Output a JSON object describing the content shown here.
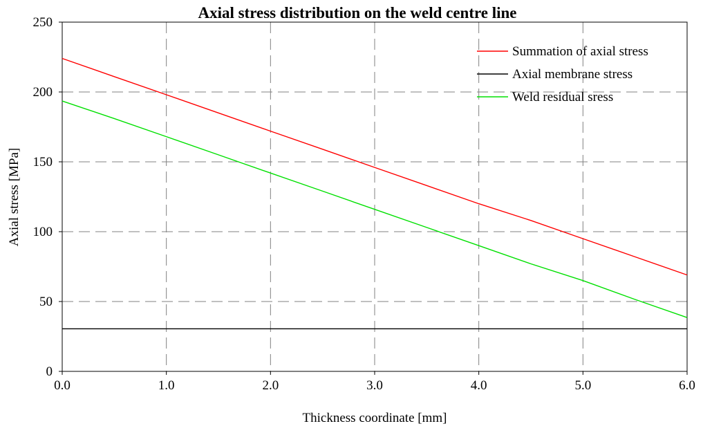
{
  "chart_data": {
    "type": "line",
    "title": "Axial stress distribution on the weld centre line",
    "xlabel": "Thickness coordinate [mm]",
    "ylabel": "Axial stress [MPa]",
    "xlim": [
      0,
      6
    ],
    "ylim": [
      0,
      250
    ],
    "x_ticks": [
      "0.0",
      "1.0",
      "2.0",
      "3.0",
      "4.0",
      "5.0",
      "6.0"
    ],
    "y_ticks": [
      "0",
      "50",
      "100",
      "150",
      "200",
      "250"
    ],
    "grid": true,
    "legend_position": "top-right",
    "x": [
      0,
      0.5,
      1.0,
      1.5,
      2.0,
      2.5,
      3.0,
      3.5,
      4.0,
      4.5,
      5.0,
      5.5,
      6.0
    ],
    "series": [
      {
        "name": "Summation of axial stress",
        "color": "#ff0000",
        "values": [
          224,
          211,
          198,
          185,
          172,
          159,
          146,
          133,
          120,
          108,
          95,
          82,
          69
        ]
      },
      {
        "name": "Axial membrane stress",
        "color": "#000000",
        "values": [
          30.5,
          30.5,
          30.5,
          30.5,
          30.5,
          30.5,
          30.5,
          30.5,
          30.5,
          30.5,
          30.5,
          30.5,
          30.5
        ]
      },
      {
        "name": "Weld residual sress",
        "color": "#00e000",
        "values": [
          193.5,
          181,
          168,
          155,
          142,
          129,
          116,
          103,
          90,
          77,
          65,
          51.5,
          38.5
        ]
      }
    ]
  }
}
